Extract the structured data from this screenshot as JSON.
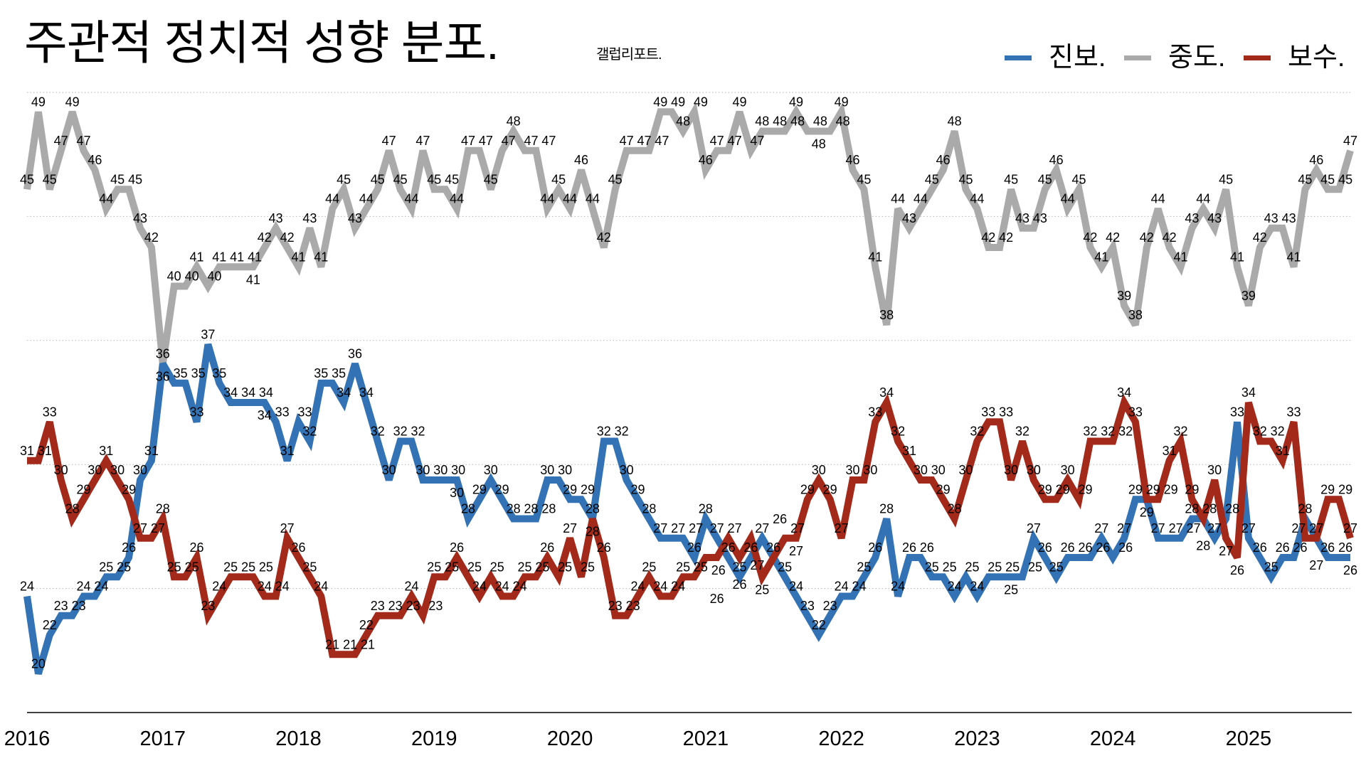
{
  "header": {
    "title": "주관적 정치적 성향 분포.",
    "source": "갤럽리포트."
  },
  "chart_data": {
    "type": "line",
    "title": "주관적 정치적 성향 분포.",
    "xlabel": "",
    "ylabel": "",
    "ylim": [
      18,
      50
    ],
    "grid": true,
    "legend_position": "top-right",
    "x_ticks": [
      "2016",
      "2017",
      "2018",
      "2019",
      "2020",
      "2021",
      "2022",
      "2023",
      "2024",
      "2025"
    ],
    "x": [
      "2016-01",
      "2016-02",
      "2016-03",
      "2016-04",
      "2016-05",
      "2016-06",
      "2016-07",
      "2016-08",
      "2016-09",
      "2016-10",
      "2016-11",
      "2016-12",
      "2017-01",
      "2017-02",
      "2017-03",
      "2017-04",
      "2017-05",
      "2017-06",
      "2017-07",
      "2017-08",
      "2017-09",
      "2017-10",
      "2017-11",
      "2017-12",
      "2018-01",
      "2018-02",
      "2018-03",
      "2018-04",
      "2018-05",
      "2018-06",
      "2018-07",
      "2018-08",
      "2018-09",
      "2018-10",
      "2018-11",
      "2018-12",
      "2019-01",
      "2019-02",
      "2019-03",
      "2019-04",
      "2019-05",
      "2019-06",
      "2019-07",
      "2019-08",
      "2019-09",
      "2019-10",
      "2019-11",
      "2019-12",
      "2020-01",
      "2020-02",
      "2020-03",
      "2020-04",
      "2020-05",
      "2020-06",
      "2020-07",
      "2020-08",
      "2020-09",
      "2020-10",
      "2020-11",
      "2020-12",
      "2021-01",
      "2021-02",
      "2021-03",
      "2021-04",
      "2021-05",
      "2021-06",
      "2021-07",
      "2021-08",
      "2021-09",
      "2021-10",
      "2021-11",
      "2021-12",
      "2022-01",
      "2022-02",
      "2022-03",
      "2022-04",
      "2022-05",
      "2022-06",
      "2022-07",
      "2022-08",
      "2022-09",
      "2022-10",
      "2022-11",
      "2022-12",
      "2023-01",
      "2023-02",
      "2023-03",
      "2023-04",
      "2023-05",
      "2023-06",
      "2023-07",
      "2023-08",
      "2023-09",
      "2023-10",
      "2023-11",
      "2023-12",
      "2024-01",
      "2024-02",
      "2024-03",
      "2024-04",
      "2024-05",
      "2024-06",
      "2024-07",
      "2024-08",
      "2024-09",
      "2024-10",
      "2024-11",
      "2024-12",
      "2025-01",
      "2025-02",
      "2025-03",
      "2025-04",
      "2025-05",
      "2025-06",
      "2025-07",
      "2025-08",
      "2025-09",
      "2025-10"
    ],
    "series": [
      {
        "name": "진보.",
        "color": "#3373b5",
        "values": [
          24,
          20,
          22,
          23,
          23,
          24,
          24,
          25,
          25,
          26,
          30,
          31,
          36,
          35,
          35,
          33,
          37,
          35,
          34,
          34,
          34,
          34,
          33,
          31,
          33,
          32,
          35,
          35,
          34,
          36,
          34,
          32,
          30,
          32,
          32,
          30,
          30,
          30,
          30,
          28,
          29,
          30,
          29,
          28,
          28,
          28,
          30,
          30,
          29,
          29,
          28,
          32,
          32,
          30,
          29,
          28,
          27,
          27,
          27,
          26,
          28,
          27,
          26,
          25,
          26,
          27,
          26,
          25,
          24,
          23,
          22,
          23,
          24,
          24,
          25,
          26,
          28,
          24,
          26,
          26,
          25,
          25,
          24,
          25,
          24,
          25,
          25,
          25,
          25,
          27,
          26,
          25,
          26,
          26,
          26,
          27,
          26,
          27,
          29,
          29,
          27,
          27,
          27,
          28,
          28,
          27,
          28,
          33,
          27,
          26,
          25,
          26,
          26,
          28,
          27,
          26,
          26,
          26
        ]
      },
      {
        "name": "중도.",
        "color": "#aaaaaa",
        "values": [
          45,
          49,
          45,
          47,
          49,
          47,
          46,
          44,
          45,
          45,
          43,
          42,
          36,
          40,
          40,
          41,
          40,
          41,
          41,
          41,
          41,
          42,
          43,
          42,
          41,
          43,
          41,
          44,
          45,
          43,
          44,
          45,
          47,
          45,
          44,
          47,
          45,
          45,
          44,
          47,
          47,
          45,
          47,
          48,
          47,
          47,
          44,
          45,
          44,
          46,
          44,
          42,
          45,
          47,
          47,
          47,
          49,
          49,
          48,
          49,
          46,
          47,
          47,
          49,
          47,
          48,
          48,
          48,
          49,
          48,
          48,
          48,
          49,
          46,
          45,
          41,
          38,
          44,
          43,
          44,
          45,
          46,
          48,
          45,
          44,
          42,
          42,
          45,
          43,
          43,
          45,
          46,
          44,
          45,
          42,
          41,
          42,
          39,
          38,
          42,
          44,
          42,
          41,
          43,
          44,
          43,
          45,
          41,
          39,
          42,
          43,
          43,
          41,
          45,
          46,
          45,
          45,
          47
        ]
      },
      {
        "name": "보수.",
        "color": "#a3291a",
        "values": [
          31,
          31,
          33,
          30,
          28,
          29,
          30,
          31,
          30,
          29,
          27,
          27,
          28,
          25,
          25,
          26,
          23,
          24,
          25,
          25,
          25,
          24,
          24,
          27,
          26,
          25,
          24,
          21,
          21,
          21,
          22,
          23,
          23,
          23,
          24,
          23,
          25,
          25,
          26,
          25,
          24,
          25,
          24,
          24,
          25,
          25,
          26,
          25,
          27,
          25,
          28,
          26,
          23,
          23,
          24,
          25,
          24,
          24,
          25,
          25,
          26,
          26,
          27,
          26,
          27,
          25,
          26,
          27,
          27,
          29,
          30,
          29,
          27,
          30,
          30,
          33,
          34,
          32,
          31,
          30,
          30,
          29,
          28,
          30,
          32,
          33,
          33,
          30,
          32,
          30,
          29,
          29,
          30,
          29,
          32,
          32,
          32,
          34,
          33,
          29,
          29,
          31,
          32,
          29,
          28,
          30,
          27,
          26,
          34,
          32,
          32,
          31,
          33,
          27,
          27,
          29,
          29,
          27
        ]
      }
    ]
  }
}
